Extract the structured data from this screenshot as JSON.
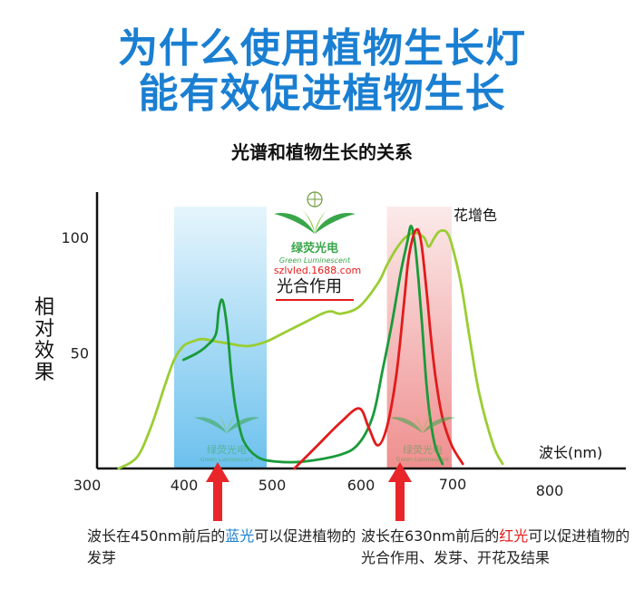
{
  "headline": {
    "line1": "为什么使用植物生长灯",
    "line2": "能有效促进植物生长"
  },
  "colors": {
    "headline": "#1a7fd2",
    "blue_band": "#8fd0f0",
    "red_band": "#f2a8a8",
    "photosynthesis_line": "#e21b1b",
    "arrow": "#e8262a",
    "curve_light_green": "#9acd32",
    "curve_dark_green": "#1a9a3a",
    "curve_red": "#e21b1b"
  },
  "logo": {
    "name": "绿荧光电",
    "sub": "Green Luminescent",
    "url": "szlvled.1688.com"
  },
  "annotations": {
    "photosynthesis": "光合作用",
    "flower": "花增色"
  },
  "captions": {
    "blue": {
      "pre": "波长在450nm前后的",
      "hi": "蓝光",
      "post": "可以促进植物的发芽"
    },
    "red": {
      "pre": "波长在630nm前后的",
      "hi": "红光",
      "post": "可以促进植物的光合作用、发芽、开花及结果"
    }
  },
  "chart_data": {
    "type": "line",
    "title": "光谱和植物生长的关系",
    "xlabel": "波长(nm)",
    "ylabel": "相对效果",
    "xlim": [
      300,
      800
    ],
    "ylim": [
      0,
      110
    ],
    "x_ticks": [
      {
        "label": "300",
        "value": 300
      },
      {
        "label": "400",
        "value": 400
      },
      {
        "label": "500",
        "value": 500
      },
      {
        "label": "600",
        "value": 600
      },
      {
        "label": "700",
        "value": 700
      },
      {
        "label": "800",
        "value": 800
      }
    ],
    "y_ticks": [
      {
        "label": "100",
        "value": 100
      },
      {
        "label": "50",
        "value": 50
      }
    ],
    "bands": [
      {
        "name": "blue",
        "x": [
          400,
          500
        ]
      },
      {
        "name": "red",
        "x": [
          630,
          700
        ]
      }
    ],
    "arrows": [
      450,
      630
    ],
    "series": [
      {
        "color": "#9acd32",
        "x": [
          340,
          360,
          375,
          390,
          400,
          410,
          420,
          430,
          445,
          460,
          480,
          500,
          520,
          540,
          560,
          570,
          580,
          600,
          620,
          630,
          640,
          650,
          660,
          670,
          675,
          680,
          685,
          690,
          695,
          700,
          710,
          720,
          730,
          745,
          755
        ],
        "y": [
          0,
          5,
          18,
          36,
          47,
          53,
          55,
          56,
          55,
          54,
          53,
          55,
          59,
          63,
          67,
          68,
          67,
          70,
          80,
          88,
          95,
          100,
          102,
          100,
          96,
          99,
          102,
          103,
          102,
          97,
          80,
          55,
          32,
          10,
          2
        ]
      },
      {
        "color": "#1a9a3a",
        "x": [
          410,
          425,
          435,
          445,
          448,
          451,
          454,
          458,
          462,
          467,
          475,
          490,
          510,
          540,
          580,
          600,
          615,
          625,
          635,
          645,
          652,
          656,
          660,
          664,
          668,
          672,
          676,
          682,
          690
        ],
        "y": [
          47,
          50,
          53,
          58,
          68,
          73,
          70,
          58,
          40,
          25,
          12,
          5,
          3,
          3,
          6,
          11,
          23,
          42,
          62,
          85,
          98,
          105,
          98,
          82,
          62,
          40,
          24,
          10,
          2
        ]
      },
      {
        "color": "#e21b1b",
        "x": [
          530,
          555,
          580,
          600,
          610,
          620,
          630,
          640,
          648,
          653,
          658,
          661,
          664,
          667,
          670,
          674,
          678,
          683,
          690,
          700,
          712
        ],
        "y": [
          0,
          10,
          20,
          26,
          18,
          10,
          18,
          40,
          70,
          90,
          100,
          103,
          103,
          98,
          88,
          72,
          55,
          38,
          22,
          10,
          2
        ]
      }
    ]
  }
}
